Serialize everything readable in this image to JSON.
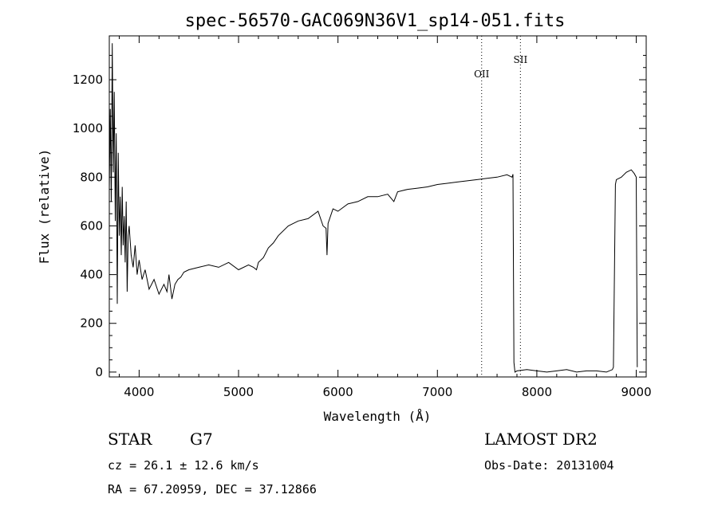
{
  "chart_data": {
    "type": "line",
    "title": "spec-56570-GAC069N36V1_sp14-051.fits",
    "xlabel": "Wavelength (Å)",
    "ylabel": "Flux (relative)",
    "xlim": [
      3700,
      9100
    ],
    "ylim": [
      -20,
      1380
    ],
    "xticks": [
      4000,
      5000,
      6000,
      7000,
      8000,
      9000
    ],
    "yticks": [
      0,
      200,
      400,
      600,
      800,
      1000,
      1200
    ],
    "grid": false,
    "lines": [
      {
        "label": "OII",
        "x": 7445
      },
      {
        "label": "SII",
        "x": 7835
      }
    ],
    "series": [
      {
        "x": [
          3700,
          3710,
          3720,
          3730,
          3740,
          3750,
          3760,
          3770,
          3780,
          3790,
          3800,
          3810,
          3820,
          3830,
          3840,
          3850,
          3860,
          3870,
          3880,
          3890,
          3900,
          3920,
          3940,
          3960,
          3980,
          4000,
          4030,
          4060,
          4100,
          4150,
          4200,
          4250,
          4280,
          4300,
          4330,
          4360,
          4390,
          4420,
          4450,
          4500,
          4600,
          4700,
          4800,
          4900,
          5000,
          5100,
          5150,
          5180,
          5200,
          5250,
          5300,
          5350,
          5400,
          5500,
          5600,
          5700,
          5800,
          5850,
          5880,
          5890,
          5900,
          5950,
          6000,
          6100,
          6200,
          6300,
          6400,
          6500,
          6562,
          6600,
          6700,
          6800,
          6900,
          7000,
          7100,
          7200,
          7300,
          7400,
          7500,
          7600,
          7700,
          7750,
          7760,
          7770,
          7780,
          7800,
          7900,
          8000,
          8100,
          8200,
          8300,
          8400,
          8500,
          8600,
          8700,
          8760,
          8770,
          8790,
          8800,
          8850,
          8900,
          8950,
          8980,
          9000,
          9010
        ],
        "y": [
          750,
          1080,
          700,
          1350,
          820,
          1150,
          620,
          980,
          280,
          900,
          560,
          720,
          480,
          760,
          520,
          640,
          450,
          700,
          330,
          560,
          600,
          480,
          430,
          520,
          400,
          460,
          380,
          420,
          340,
          380,
          320,
          360,
          330,
          400,
          300,
          360,
          380,
          390,
          410,
          420,
          430,
          440,
          430,
          450,
          420,
          440,
          430,
          420,
          450,
          470,
          510,
          530,
          560,
          600,
          620,
          630,
          660,
          600,
          590,
          480,
          610,
          670,
          660,
          690,
          700,
          720,
          720,
          730,
          700,
          740,
          750,
          755,
          760,
          770,
          775,
          780,
          785,
          790,
          795,
          800,
          810,
          800,
          812,
          40,
          0,
          5,
          10,
          5,
          0,
          5,
          10,
          0,
          5,
          5,
          0,
          10,
          20,
          770,
          790,
          800,
          820,
          830,
          815,
          800,
          20
        ]
      }
    ]
  },
  "footer": {
    "class_label": "STAR",
    "subclass": "G7",
    "cz": "cz = 26.1 ± 12.6 km/s",
    "coords": "RA =  67.20959, DEC =  37.12866",
    "survey": "LAMOST DR2",
    "obs_date": "Obs-Date: 20131004"
  }
}
